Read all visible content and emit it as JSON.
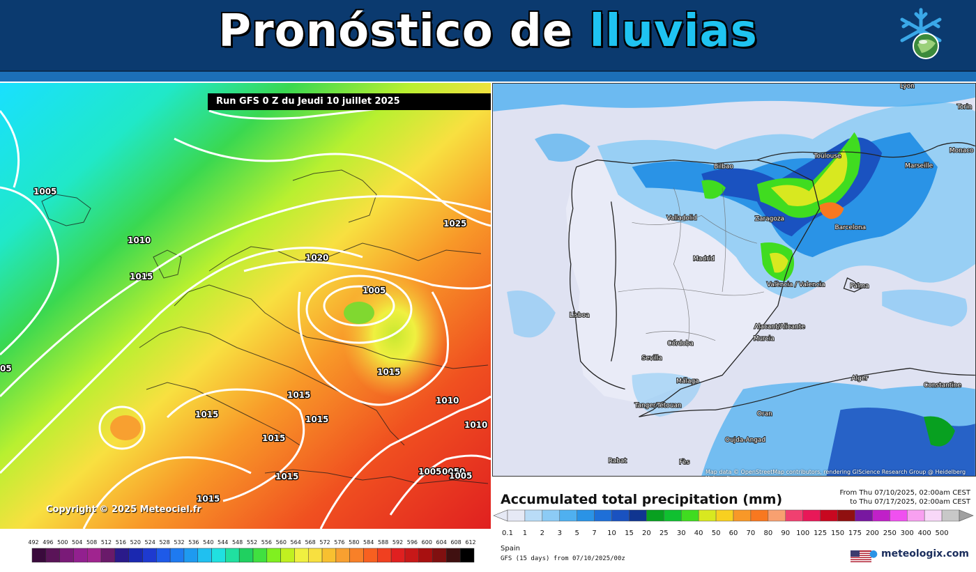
{
  "header": {
    "title_part1": "Pronóstico de",
    "title_part2": "lluvias",
    "logo_icon": "snowflake-globe-icon",
    "colors": {
      "background": "#0b3a6f",
      "accent": "#1fc3f1"
    }
  },
  "left_map": {
    "run_title": "Run GFS 0 Z du Jeudi 10 juillet 2025",
    "copyright": "Copyright © 2025 Meteociel.fr",
    "isobar_labels": [
      "1005",
      "1010",
      "1015",
      "1020",
      "1025",
      "1005",
      "05",
      "1015",
      "1015",
      "1015",
      "1015",
      "1010",
      "1010",
      "1015",
      "1015",
      "1005",
      "0050",
      "1005",
      "1015"
    ],
    "legend_values": [
      "492",
      "496",
      "500",
      "504",
      "508",
      "512",
      "516",
      "520",
      "524",
      "528",
      "532",
      "536",
      "540",
      "544",
      "548",
      "552",
      "556",
      "560",
      "564",
      "568",
      "572",
      "576",
      "580",
      "584",
      "588",
      "592",
      "596",
      "600",
      "604",
      "608",
      "612"
    ],
    "legend_colors": [
      "#3a0a3c",
      "#5a1458",
      "#7a1a78",
      "#92208f",
      "#a0248f",
      "#6a1a6a",
      "#2a1a8a",
      "#1a28b0",
      "#1e3ad0",
      "#1e5ae8",
      "#1e7af0",
      "#1e9af0",
      "#20c0f0",
      "#20e0e0",
      "#20e0a0",
      "#20d060",
      "#40e040",
      "#80f020",
      "#c0f020",
      "#f0f040",
      "#f8e040",
      "#f8c030",
      "#f8a030",
      "#f88028",
      "#f86020",
      "#f04020",
      "#e02020",
      "#c81818",
      "#a81010",
      "#801010",
      "#401010",
      "#000000"
    ]
  },
  "right_map": {
    "attribution": "Map data © OpenStreetMap contributors, rendering GIScience Research Group @ Heidelberg University",
    "cities": [
      "Lyon",
      "Torin",
      "Monaco",
      "Toulouse",
      "Marseille",
      "Bilbao",
      "Zaragoza",
      "Barcelona",
      "Valladolid",
      "Madrid",
      "València / Valencia",
      "Palma",
      "Lisboa",
      "Alacant/Alicante",
      "Murcia",
      "Córdoba",
      "Sevilla",
      "Málaga",
      "Tanger-Tétouan",
      "Alger",
      "Constantine",
      "Oran",
      "Oujda-Angad",
      "Rabat",
      "Fès"
    ],
    "legend": {
      "title": "Accumulated total precipitation (mm)",
      "period_from": "From Thu 07/10/2025, 02:00am CEST",
      "period_to": "to Thu 07/17/2025, 02:00am CEST",
      "values": [
        "0.1",
        "1",
        "2",
        "3",
        "5",
        "7",
        "10",
        "15",
        "20",
        "25",
        "30",
        "40",
        "50",
        "60",
        "70",
        "80",
        "90",
        "100",
        "125",
        "150",
        "175",
        "200",
        "250",
        "300",
        "400",
        "500"
      ],
      "colors": [
        "#e6e9f5",
        "#b9dcf7",
        "#8ccbf5",
        "#4fb0f0",
        "#2a93e6",
        "#1e6fd8",
        "#1a52c0",
        "#103590",
        "#08a020",
        "#10c030",
        "#40dc20",
        "#d8e820",
        "#f8d020",
        "#f89828",
        "#f87820",
        "#f8a070",
        "#f04070",
        "#e81858",
        "#c80820",
        "#901010",
        "#7818a0",
        "#c020c8",
        "#f050f0",
        "#f8a0f0",
        "#f8d8f8",
        "#c8c8c8"
      ],
      "place": "Spain",
      "model": "GFS (15 days) from 07/10/2025/00z",
      "brand": "meteologix.com"
    }
  }
}
